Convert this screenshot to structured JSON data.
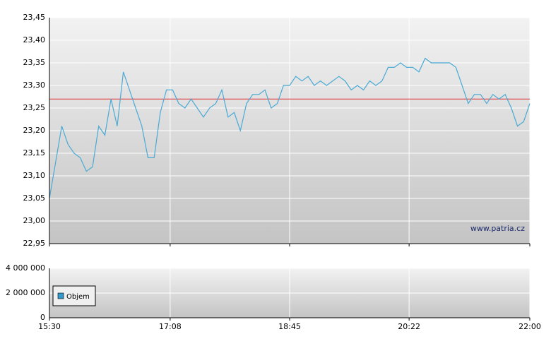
{
  "chart_data": {
    "type": "line",
    "x": [
      "15:30",
      "15:35",
      "15:40",
      "15:45",
      "15:50",
      "15:55",
      "16:00",
      "16:05",
      "16:10",
      "16:15",
      "16:20",
      "16:25",
      "16:30",
      "16:35",
      "16:40",
      "16:45",
      "16:50",
      "16:55",
      "17:00",
      "17:05",
      "17:10",
      "17:15",
      "17:20",
      "17:25",
      "17:30",
      "17:35",
      "17:40",
      "17:45",
      "17:50",
      "17:55",
      "18:00",
      "18:05",
      "18:10",
      "18:15",
      "18:20",
      "18:25",
      "18:30",
      "18:35",
      "18:40",
      "18:45",
      "18:50",
      "18:55",
      "19:00",
      "19:05",
      "19:10",
      "19:15",
      "19:20",
      "19:25",
      "19:30",
      "19:35",
      "19:40",
      "19:45",
      "19:50",
      "19:55",
      "20:00",
      "20:05",
      "20:10",
      "20:15",
      "20:20",
      "20:25",
      "20:30",
      "20:35",
      "20:40",
      "20:45",
      "20:50",
      "20:55",
      "21:00",
      "21:05",
      "21:10",
      "21:15",
      "21:20",
      "21:25",
      "21:30",
      "21:35",
      "21:40",
      "21:45",
      "21:50",
      "21:55",
      "22:00"
    ],
    "series": [
      {
        "color": "#4aaad4",
        "values": [
          23.05,
          23.13,
          23.21,
          23.17,
          23.15,
          23.14,
          23.11,
          23.12,
          23.21,
          23.19,
          23.27,
          23.21,
          23.33,
          23.29,
          23.25,
          23.21,
          23.14,
          23.14,
          23.24,
          23.29,
          23.29,
          23.26,
          23.25,
          23.27,
          23.25,
          23.23,
          23.25,
          23.26,
          23.29,
          23.23,
          23.24,
          23.2,
          23.26,
          23.28,
          23.28,
          23.29,
          23.25,
          23.26,
          23.3,
          23.3,
          23.32,
          23.31,
          23.32,
          23.3,
          23.31,
          23.3,
          23.31,
          23.32,
          23.31,
          23.29,
          23.3,
          23.29,
          23.31,
          23.3,
          23.31,
          23.34,
          23.34,
          23.35,
          23.34,
          23.34,
          23.33,
          23.36,
          23.35,
          23.35,
          23.35,
          23.35,
          23.34,
          23.3,
          23.26,
          23.28,
          23.28,
          23.26,
          23.28,
          23.27,
          23.28,
          23.25,
          23.21,
          23.22,
          23.26
        ]
      }
    ],
    "reference_line": {
      "value": 23.27,
      "color": "#e03030"
    },
    "xlim": [
      "15:30",
      "22:00"
    ],
    "xticks": [
      "15:30",
      "17:08",
      "18:45",
      "20:22",
      "22:00"
    ],
    "ylim": [
      22.95,
      23.45
    ],
    "yticks": [
      {
        "value": 22.95,
        "label": "22,95"
      },
      {
        "value": 23.0,
        "label": "23,00"
      },
      {
        "value": 23.05,
        "label": "23,05"
      },
      {
        "value": 23.1,
        "label": "23,10"
      },
      {
        "value": 23.15,
        "label": "23,15"
      },
      {
        "value": 23.2,
        "label": "23,20"
      },
      {
        "value": 23.25,
        "label": "23,25"
      },
      {
        "value": 23.3,
        "label": "23,30"
      },
      {
        "value": 23.35,
        "label": "23,35"
      },
      {
        "value": 23.4,
        "label": "23,40"
      },
      {
        "value": 23.45,
        "label": "23,45"
      }
    ],
    "grid": true,
    "watermark": "www.patria.cz",
    "volume": {
      "name": "Objem",
      "color": "#3399cc",
      "ylim": [
        0,
        4000000
      ],
      "yticks": [
        0,
        {
          "value": 2000000,
          "label": "2 000 000"
        },
        {
          "value": 4000000,
          "label": "4 000 000"
        }
      ]
    }
  }
}
